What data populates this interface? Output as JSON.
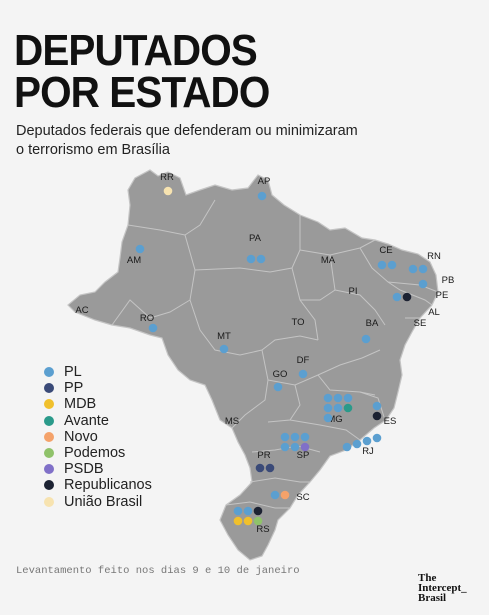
{
  "title_lines": [
    "DEPUTADOS",
    "POR ESTADO"
  ],
  "subtitle_lines": [
    "Deputados federais que defenderam ou minimizaram",
    "o terrorismo em Brasília"
  ],
  "footer": "Levantamento feito nos dias 9 e 10 de janeiro",
  "logo_lines": [
    "The",
    "Intercept_",
    "Brasil"
  ],
  "colors": {
    "map_fill": "#9a9a9a",
    "border": "#c4c4c4",
    "background": "#f4f4f4",
    "PL": "#5b9fd0",
    "PP": "#3a4a78",
    "MDB": "#f0c02c",
    "Avante": "#2a9a8a",
    "Novo": "#f4a26a",
    "Podemos": "#8fc26a",
    "PSDB": "#8070c8",
    "Republicanos": "#1c2232",
    "União Brasil": "#f7e3b0"
  },
  "legend": [
    {
      "party": "PL",
      "label": "PL"
    },
    {
      "party": "PP",
      "label": "PP"
    },
    {
      "party": "MDB",
      "label": "MDB"
    },
    {
      "party": "Avante",
      "label": "Avante"
    },
    {
      "party": "Novo",
      "label": "Novo"
    },
    {
      "party": "Podemos",
      "label": "Podemos"
    },
    {
      "party": "PSDB",
      "label": "PSDB"
    },
    {
      "party": "Republicanos",
      "label": "Republicanos"
    },
    {
      "party": "União Brasil",
      "label": "União Brasil"
    }
  ],
  "states": [
    {
      "abbr": "RR",
      "deputies": [
        "União Brasil"
      ]
    },
    {
      "abbr": "AP",
      "deputies": [
        "PL"
      ]
    },
    {
      "abbr": "AM",
      "deputies": [
        "PL"
      ]
    },
    {
      "abbr": "PA",
      "deputies": [
        "PL",
        "PL"
      ]
    },
    {
      "abbr": "MA",
      "deputies": []
    },
    {
      "abbr": "CE",
      "deputies": [
        "PL",
        "PL"
      ]
    },
    {
      "abbr": "RN",
      "deputies": [
        "PL",
        "PL"
      ]
    },
    {
      "abbr": "PB",
      "deputies": [
        "PL"
      ]
    },
    {
      "abbr": "PE",
      "deputies": [
        "PL",
        "Republicanos"
      ]
    },
    {
      "abbr": "AL",
      "deputies": []
    },
    {
      "abbr": "SE",
      "deputies": []
    },
    {
      "abbr": "PI",
      "deputies": []
    },
    {
      "abbr": "AC",
      "deputies": []
    },
    {
      "abbr": "RO",
      "deputies": [
        "PL"
      ]
    },
    {
      "abbr": "TO",
      "deputies": []
    },
    {
      "abbr": "BA",
      "deputies": [
        "PL"
      ]
    },
    {
      "abbr": "MT",
      "deputies": [
        "PL"
      ]
    },
    {
      "abbr": "DF",
      "deputies": [
        "PL"
      ]
    },
    {
      "abbr": "GO",
      "deputies": [
        "PL"
      ]
    },
    {
      "abbr": "MG",
      "deputies": [
        "PL",
        "PL",
        "PL",
        "PL",
        "PL",
        "Avante",
        "PL"
      ]
    },
    {
      "abbr": "ES",
      "deputies": [
        "PL",
        "Republicanos"
      ]
    },
    {
      "abbr": "MS",
      "deputies": []
    },
    {
      "abbr": "SP",
      "deputies": [
        "PL",
        "PL",
        "PL",
        "PL",
        "PL",
        "PSDB"
      ]
    },
    {
      "abbr": "RJ",
      "deputies": [
        "PL",
        "PL",
        "PL",
        "PL"
      ]
    },
    {
      "abbr": "PR",
      "deputies": [
        "PP",
        "PP"
      ]
    },
    {
      "abbr": "SC",
      "deputies": [
        "PL",
        "Novo"
      ]
    },
    {
      "abbr": "RS",
      "deputies": [
        "PL",
        "PL",
        "Republicanos",
        "MDB",
        "MDB",
        "Podemos"
      ]
    }
  ]
}
